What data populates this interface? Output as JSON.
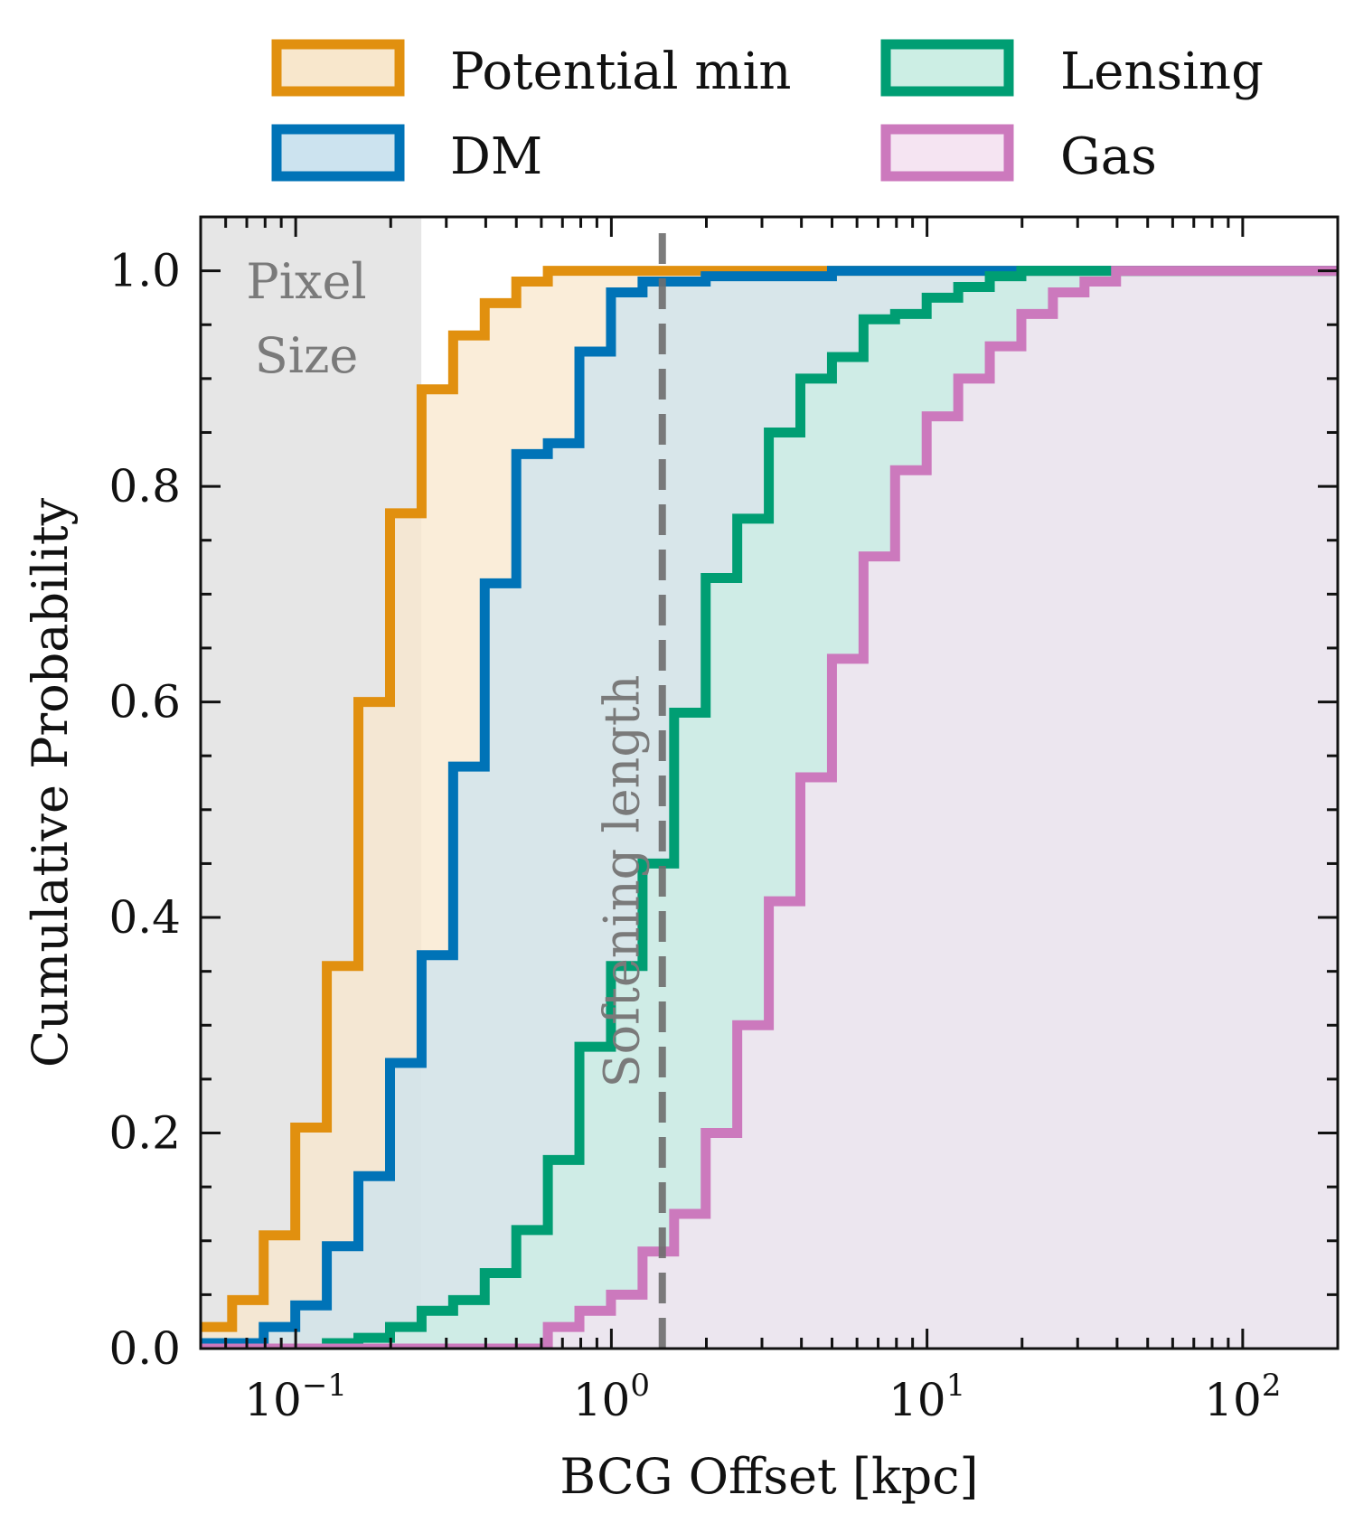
{
  "chart_data": {
    "type": "step",
    "title": "",
    "xlabel": "BCG Offset [kpc]",
    "ylabel": "Cumulative Probability",
    "xscale": "log",
    "xlim": [
      0.05,
      200
    ],
    "ylim": [
      0,
      1.05
    ],
    "x_ticks": [
      {
        "value": 0.1,
        "base": "10",
        "exp": "−1"
      },
      {
        "value": 1,
        "base": "10",
        "exp": "0"
      },
      {
        "value": 10,
        "base": "10",
        "exp": "1"
      },
      {
        "value": 100,
        "base": "10",
        "exp": "2"
      }
    ],
    "y_ticks": [
      "0.0",
      "0.2",
      "0.4",
      "0.6",
      "0.8",
      "1.0"
    ],
    "legend_position": "top, outside plot, 2 columns",
    "bin_edges": [
      0.05,
      0.0629,
      0.0792,
      0.0997,
      0.1255,
      0.158,
      0.199,
      0.2505,
      0.3154,
      0.397,
      0.4998,
      0.6292,
      0.7921,
      0.9972,
      1.2555,
      1.5806,
      1.9898,
      2.505,
      3.1536,
      3.9702,
      4.9982,
      6.2923,
      7.9216,
      9.9727,
      12.555,
      15.806,
      19.898,
      25.05,
      31.536,
      39.702,
      49.982,
      62.923,
      79.216,
      99.727,
      125.55,
      158.06,
      200
    ],
    "series": [
      {
        "name": "Potential min",
        "color": "#e1900f",
        "fill": "#f8e7cc",
        "values": [
          0.02,
          0.045,
          0.105,
          0.205,
          0.355,
          0.6,
          0.775,
          0.89,
          0.94,
          0.97,
          0.99,
          1.0,
          1.0,
          1.0,
          1.0,
          1.0,
          1.0,
          1.0,
          1.0,
          1.0,
          1.0,
          1.0,
          1.0,
          1.0,
          1.0,
          1.0,
          1.0,
          1.0,
          1.0,
          1.0,
          1.0,
          1.0,
          1.0,
          1.0,
          1.0,
          1.0
        ]
      },
      {
        "name": "DM",
        "color": "#0073b7",
        "fill": "#cce3ef",
        "values": [
          0.005,
          0.005,
          0.02,
          0.04,
          0.095,
          0.16,
          0.265,
          0.365,
          0.54,
          0.71,
          0.83,
          0.84,
          0.925,
          0.98,
          0.99,
          0.99,
          0.995,
          0.995,
          0.995,
          0.995,
          1.0,
          1.0,
          1.0,
          1.0,
          1.0,
          1.0,
          1.0,
          1.0,
          1.0,
          1.0,
          1.0,
          1.0,
          1.0,
          1.0,
          1.0,
          1.0
        ]
      },
      {
        "name": "Lensing",
        "color": "#009e73",
        "fill": "#cceee4",
        "values": [
          0.0,
          0.0,
          0.0,
          0.0,
          0.005,
          0.01,
          0.02,
          0.035,
          0.045,
          0.07,
          0.11,
          0.175,
          0.28,
          0.355,
          0.45,
          0.59,
          0.715,
          0.77,
          0.85,
          0.9,
          0.92,
          0.955,
          0.96,
          0.975,
          0.985,
          0.995,
          1.0,
          1.0,
          1.0,
          1.0,
          1.0,
          1.0,
          1.0,
          1.0,
          1.0,
          1.0
        ]
      },
      {
        "name": "Gas",
        "color": "#cc79bd",
        "fill": "#f5e4f2",
        "values": [
          0.0,
          0.0,
          0.0,
          0.0,
          0.0,
          0.0,
          0.0,
          0.0,
          0.0,
          0.0,
          0.0,
          0.02,
          0.035,
          0.05,
          0.09,
          0.125,
          0.2,
          0.3,
          0.415,
          0.53,
          0.64,
          0.735,
          0.815,
          0.865,
          0.9,
          0.93,
          0.96,
          0.98,
          0.99,
          1.0,
          1.0,
          1.0,
          1.0,
          1.0,
          1.0,
          1.0
        ]
      }
    ],
    "annotations": {
      "pixel_size": {
        "label_line1": "Pixel",
        "label_line2": "Size",
        "x_max": 0.25
      },
      "softening_length": {
        "label": "Softening length",
        "x": 1.45
      }
    }
  }
}
